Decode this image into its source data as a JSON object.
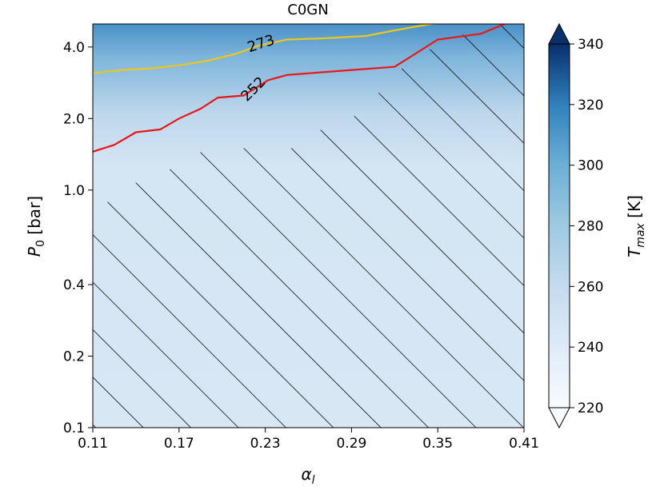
{
  "chart_data": {
    "type": "contour",
    "title": "C0GN",
    "xlabel": "α_l",
    "ylabel": "P_0 [bar]",
    "x_ticks": [
      "0.11",
      "0.17",
      "0.23",
      "0.29",
      "0.35",
      "0.41"
    ],
    "y_ticks": [
      "0.1",
      "0.2",
      "0.4",
      "1.0",
      "2.0",
      "4.0"
    ],
    "xlim": [
      0.11,
      0.41
    ],
    "ylim": [
      0.1,
      5.0
    ],
    "y_scale": "log",
    "colorbar": {
      "label": "T_max [K]",
      "label_main": "T",
      "label_sub": "max",
      "label_unit": " [K]",
      "ticks": [
        "220",
        "240",
        "260",
        "280",
        "300",
        "320",
        "340"
      ],
      "range": [
        220,
        340
      ],
      "extend": "both",
      "colors": [
        "#f7fbff",
        "#08306b"
      ]
    },
    "contours": [
      {
        "level": "273",
        "color": "#e8c81a",
        "points": [
          [
            0.11,
            3.1
          ],
          [
            0.13,
            3.2
          ],
          [
            0.15,
            3.25
          ],
          [
            0.17,
            3.35
          ],
          [
            0.19,
            3.5
          ],
          [
            0.21,
            3.75
          ],
          [
            0.225,
            4.05
          ],
          [
            0.245,
            4.3
          ],
          [
            0.27,
            4.35
          ],
          [
            0.3,
            4.45
          ],
          [
            0.32,
            4.7
          ],
          [
            0.345,
            5.0
          ],
          [
            0.37,
            5.15
          ],
          [
            0.41,
            5.3
          ]
        ]
      },
      {
        "level": "252",
        "color": "#e81818",
        "points": [
          [
            0.11,
            1.45
          ],
          [
            0.125,
            1.55
          ],
          [
            0.14,
            1.75
          ],
          [
            0.157,
            1.8
          ],
          [
            0.17,
            2.0
          ],
          [
            0.185,
            2.2
          ],
          [
            0.197,
            2.45
          ],
          [
            0.215,
            2.5
          ],
          [
            0.232,
            2.9
          ],
          [
            0.245,
            3.05
          ],
          [
            0.275,
            3.15
          ],
          [
            0.32,
            3.3
          ],
          [
            0.35,
            4.3
          ],
          [
            0.38,
            4.55
          ],
          [
            0.4,
            5.1
          ]
        ]
      }
    ],
    "hatched_region": {
      "boundary": [
        [
          0.11,
          0.75
        ],
        [
          0.13,
          1.05
        ],
        [
          0.15,
          1.1
        ],
        [
          0.19,
          1.5
        ],
        [
          0.26,
          1.5
        ],
        [
          0.27,
          1.85
        ],
        [
          0.29,
          2.0
        ],
        [
          0.31,
          2.6
        ],
        [
          0.33,
          3.5
        ],
        [
          0.36,
          4.4
        ],
        [
          0.4,
          5.0
        ],
        [
          0.41,
          5.0
        ],
        [
          0.41,
          0.1
        ],
        [
          0.11,
          0.1
        ]
      ],
      "pattern": "diagonal"
    }
  }
}
